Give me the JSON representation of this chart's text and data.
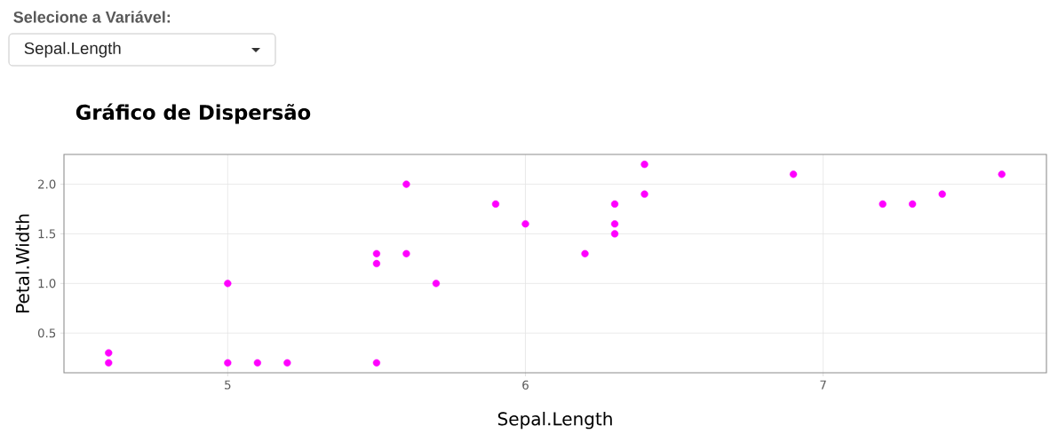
{
  "chart_data": {
    "type": "scatter",
    "title": "Gráfico de Dispersão",
    "xlabel": "Sepal.Length",
    "ylabel": "Petal.Width",
    "annotations": [
      "Selecione a Variável:",
      "Sepal.Length"
    ],
    "x": [
      4.6,
      4.6,
      5.0,
      5.0,
      5.1,
      5.2,
      5.5,
      5.5,
      5.5,
      5.6,
      5.6,
      5.7,
      5.9,
      6.0,
      6.2,
      6.3,
      6.3,
      6.3,
      6.4,
      6.4,
      6.9,
      7.2,
      7.3,
      7.4,
      7.6
    ],
    "values": [
      0.3,
      0.2,
      1.0,
      0.2,
      0.2,
      0.2,
      1.3,
      1.2,
      0.2,
      2.0,
      1.3,
      1.0,
      1.8,
      1.6,
      1.3,
      1.8,
      1.6,
      1.5,
      2.2,
      1.9,
      2.1,
      1.8,
      1.8,
      1.9,
      2.1
    ],
    "color": "#ff00ff",
    "xlim": [
      4.45,
      7.75
    ],
    "ylim": [
      0.1,
      2.3
    ],
    "xticks": [
      5,
      6,
      7
    ],
    "yticks": [
      0.5,
      {
        "value": 1.0,
        "label": "1.0"
      },
      1.5,
      {
        "value": 2.0,
        "label": "2.0"
      }
    ],
    "grid": true
  }
}
